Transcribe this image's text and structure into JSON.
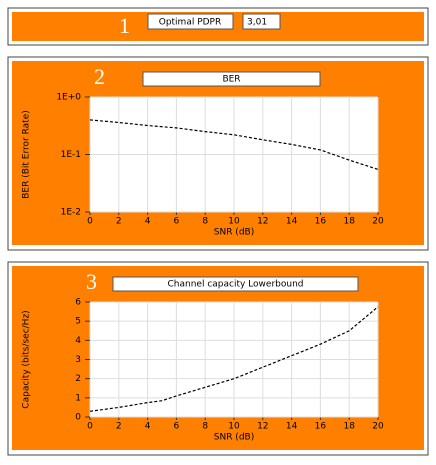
{
  "panel1": {
    "number": "1",
    "label": "Optimal PDPR",
    "value": "3,01"
  },
  "chart_data": [
    {
      "type": "line",
      "panel_number": "2",
      "title": "BER",
      "xlabel": "SNR (dB)",
      "ylabel": "BER (Bit Error Rate)",
      "x": [
        0,
        2,
        4,
        6,
        8,
        10,
        12,
        14,
        16,
        18,
        20
      ],
      "values": [
        0.4,
        0.36,
        0.32,
        0.29,
        0.25,
        0.22,
        0.18,
        0.15,
        0.12,
        0.08,
        0.055
      ],
      "color": "#000000",
      "log_y": true,
      "xlim": [
        0,
        20
      ],
      "xticks": [
        0,
        2,
        4,
        6,
        8,
        10,
        12,
        14,
        16,
        18,
        20
      ],
      "ylim": [
        0.01,
        1
      ],
      "yticks": [
        {
          "value": 1,
          "label": "1E+0"
        },
        {
          "value": 0.1,
          "label": "1E-1"
        },
        {
          "value": 0.01,
          "label": "1E-2"
        }
      ],
      "grid": true
    },
    {
      "type": "line",
      "panel_number": "3",
      "title": "Channel capacity Lowerbound",
      "xlabel": "SNR (dB)",
      "ylabel": "Capacity (bits/sec/Hz)",
      "x": [
        0,
        2,
        4,
        5,
        6,
        8,
        10,
        12,
        14,
        16,
        18,
        20
      ],
      "values": [
        0.3,
        0.5,
        0.75,
        0.85,
        1.1,
        1.55,
        2.0,
        2.6,
        3.2,
        3.8,
        4.5,
        5.75
      ],
      "color": "#000000",
      "log_y": false,
      "xlim": [
        0,
        20
      ],
      "xticks": [
        0,
        2,
        4,
        6,
        8,
        10,
        12,
        14,
        16,
        18,
        20
      ],
      "ylim": [
        0,
        6
      ],
      "yticks": [
        0,
        1,
        2,
        3,
        4,
        5,
        6
      ],
      "grid": true
    }
  ]
}
